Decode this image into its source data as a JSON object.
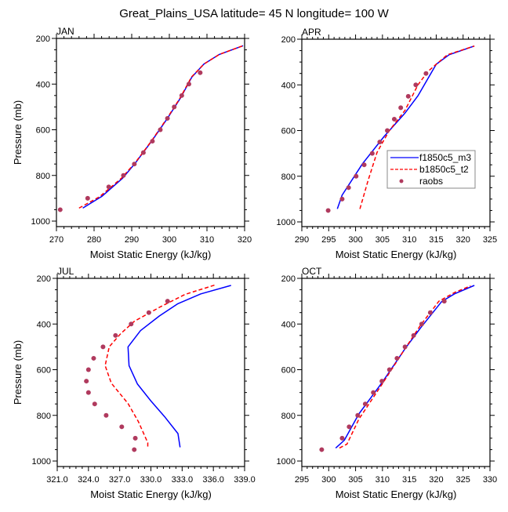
{
  "title": "Great_Plains_USA  latitude= 45 N longitude= 100 W",
  "colors": {
    "model_f": "#0000ff",
    "model_b": "#ff0000",
    "obs": "#b03a5e",
    "axis": "#000000"
  },
  "legend": {
    "placement": "APR panel, lower-right",
    "entries": [
      {
        "label": "f1850c5_m3",
        "style": "solid-line",
        "color": "#0000ff"
      },
      {
        "label": "b1850c5_t2",
        "style": "dashed-line",
        "color": "#ff0000"
      },
      {
        "label": "raobs",
        "style": "marker",
        "color": "#b03a5e"
      }
    ]
  },
  "chart_data": [
    {
      "type": "line",
      "panel": "JAN",
      "title": "JAN",
      "xlabel": "Moist Static Energy (kJ/kg)",
      "ylabel": "Pressure (mb)",
      "xlim": [
        270,
        320
      ],
      "ylim": [
        200,
        1025
      ],
      "y_inverted": true,
      "xticks": [
        270,
        280,
        290,
        300,
        310,
        320
      ],
      "xtick_labels": [
        "270",
        "280",
        "290",
        "300",
        "310",
        "320"
      ],
      "yticks": [
        200,
        400,
        600,
        800,
        1000
      ],
      "ytick_labels": [
        "200",
        "400",
        "600",
        "800",
        "1000"
      ],
      "show_ylabel": true,
      "series": [
        {
          "name": "f1850c5_m3",
          "style": "solid",
          "x": [
            277.0,
            282.1,
            287.6,
            291.1,
            295.3,
            299.5,
            303.0,
            306.0,
            309.2,
            313.3,
            319.6
          ],
          "y": [
            943,
            891,
            812,
            743,
            650,
            550,
            460,
            369,
            312,
            270,
            232
          ]
        },
        {
          "name": "b1850c5_t2",
          "style": "dashed",
          "x": [
            276.0,
            281.5,
            287.3,
            291.0,
            295.2,
            299.4,
            302.9,
            305.9,
            309.2,
            313.3,
            319.6
          ],
          "y": [
            943,
            893,
            812,
            743,
            650,
            550,
            460,
            369,
            312,
            270,
            232
          ]
        },
        {
          "name": "raobs",
          "style": "marker",
          "x": [
            271.0,
            278.3,
            283.9,
            287.8,
            290.7,
            293.1,
            295.5,
            297.6,
            299.5,
            301.3,
            303.3,
            305.2,
            308.2
          ],
          "y": [
            950,
            900,
            850,
            800,
            750,
            700,
            650,
            600,
            550,
            500,
            450,
            400,
            350
          ]
        }
      ]
    },
    {
      "type": "line",
      "panel": "APR",
      "title": "APR",
      "xlabel": "Moist Static Energy (kJ/kg)",
      "ylabel": "",
      "xlim": [
        290,
        325
      ],
      "ylim": [
        200,
        1025
      ],
      "y_inverted": true,
      "xticks": [
        290,
        295,
        300,
        305,
        310,
        315,
        320,
        325
      ],
      "xtick_labels": [
        "290",
        "295",
        "300",
        "305",
        "310",
        "315",
        "320",
        "325"
      ],
      "yticks": [
        200,
        400,
        600,
        800,
        1000
      ],
      "ytick_labels": [
        "200",
        "400",
        "600",
        "800",
        "1000"
      ],
      "show_ylabel": false,
      "series": [
        {
          "name": "f1850c5_m3",
          "style": "solid",
          "x": [
            296.6,
            297.5,
            301.3,
            305.3,
            309.2,
            311.6,
            315.0,
            317.4,
            322.1
          ],
          "y": [
            943,
            883,
            745,
            626,
            523,
            448,
            310,
            268,
            230
          ]
        },
        {
          "name": "b1850c5_t2",
          "style": "dashed",
          "x": [
            300.8,
            302.3,
            304.0,
            306.2,
            309.2,
            311.6,
            313.5,
            315.0,
            317.1,
            322.1
          ],
          "y": [
            943,
            821,
            695,
            603,
            511,
            400,
            340,
            310,
            268,
            230
          ]
        },
        {
          "name": "raobs",
          "style": "marker",
          "x": [
            294.9,
            297.5,
            298.7,
            300.1,
            301.6,
            303.1,
            304.5,
            305.9,
            307.2,
            308.4,
            309.8,
            311.2,
            313.1
          ],
          "y": [
            950,
            900,
            850,
            800,
            750,
            700,
            650,
            600,
            550,
            500,
            450,
            400,
            350
          ]
        }
      ]
    },
    {
      "type": "line",
      "panel": "JUL",
      "title": "JUL",
      "xlabel": "Moist Static Energy (kJ/kg)",
      "ylabel": "Pressure (mb)",
      "xlim": [
        321,
        339
      ],
      "ylim": [
        200,
        1025
      ],
      "y_inverted": true,
      "xticks": [
        321,
        324,
        327,
        330,
        333,
        336,
        339
      ],
      "xtick_labels": [
        "321.0",
        "324.0",
        "327.0",
        "330.0",
        "333.0",
        "336.0",
        "339.0"
      ],
      "yticks": [
        200,
        400,
        600,
        800,
        1000
      ],
      "ytick_labels": [
        "200",
        "400",
        "600",
        "800",
        "1000"
      ],
      "show_ylabel": true,
      "series": [
        {
          "name": "f1850c5_m3",
          "style": "solid",
          "x": [
            337.7,
            334.8,
            332.6,
            330.8,
            329.0,
            327.8,
            327.9,
            328.7,
            330.0,
            331.3,
            332.6,
            332.8
          ],
          "y": [
            231,
            268,
            311,
            365,
            429,
            500,
            582,
            662,
            737,
            805,
            880,
            940
          ]
        },
        {
          "name": "b1850c5_t2",
          "style": "dashed",
          "x": [
            336.1,
            333.3,
            330.9,
            328.4,
            327.1,
            326.0,
            325.6,
            326.2,
            327.8,
            328.8,
            329.7,
            329.7
          ],
          "y": [
            230,
            270,
            325,
            388,
            442,
            499,
            582,
            659,
            748,
            828,
            920,
            942
          ]
        },
        {
          "name": "raobs",
          "style": "marker",
          "x": [
            331.6,
            329.8,
            328.1,
            326.6,
            325.4,
            324.5,
            324.0,
            323.8,
            324.0,
            324.6,
            325.7,
            327.2,
            328.5,
            328.4
          ],
          "y": [
            300,
            350,
            400,
            450,
            500,
            550,
            600,
            650,
            700,
            750,
            800,
            850,
            900,
            950
          ]
        }
      ]
    },
    {
      "type": "line",
      "panel": "OCT",
      "title": "OCT",
      "xlabel": "Moist Static Energy (kJ/kg)",
      "ylabel": "",
      "xlim": [
        295,
        330
      ],
      "ylim": [
        200,
        1025
      ],
      "y_inverted": true,
      "xticks": [
        295,
        300,
        305,
        310,
        315,
        320,
        325,
        330
      ],
      "xtick_labels": [
        "295",
        "300",
        "305",
        "310",
        "315",
        "320",
        "325",
        "330"
      ],
      "yticks": [
        200,
        400,
        600,
        800,
        1000
      ],
      "ytick_labels": [
        "200",
        "400",
        "600",
        "800",
        "1000"
      ],
      "show_ylabel": false,
      "series": [
        {
          "name": "f1850c5_m3",
          "style": "solid",
          "x": [
            301.3,
            302.9,
            305.6,
            310.0,
            314.2,
            317.1,
            321.0,
            323.4,
            327.1
          ],
          "y": [
            943,
            909,
            794,
            654,
            508,
            417,
            302,
            268,
            231
          ]
        },
        {
          "name": "b1850c5_t2",
          "style": "dashed",
          "x": [
            302.0,
            303.4,
            305.6,
            309.8,
            314.2,
            317.1,
            320.5,
            323.4,
            326.4
          ],
          "y": [
            943,
            926,
            817,
            668,
            508,
            405,
            300,
            262,
            233
          ]
        },
        {
          "name": "raobs",
          "style": "marker",
          "x": [
            298.7,
            302.5,
            303.8,
            305.4,
            306.8,
            308.3,
            309.9,
            311.3,
            312.7,
            314.2,
            315.8,
            317.3,
            318.9,
            321.5
          ],
          "y": [
            950,
            900,
            850,
            800,
            750,
            700,
            650,
            600,
            550,
            500,
            450,
            400,
            350,
            300
          ]
        }
      ]
    }
  ]
}
